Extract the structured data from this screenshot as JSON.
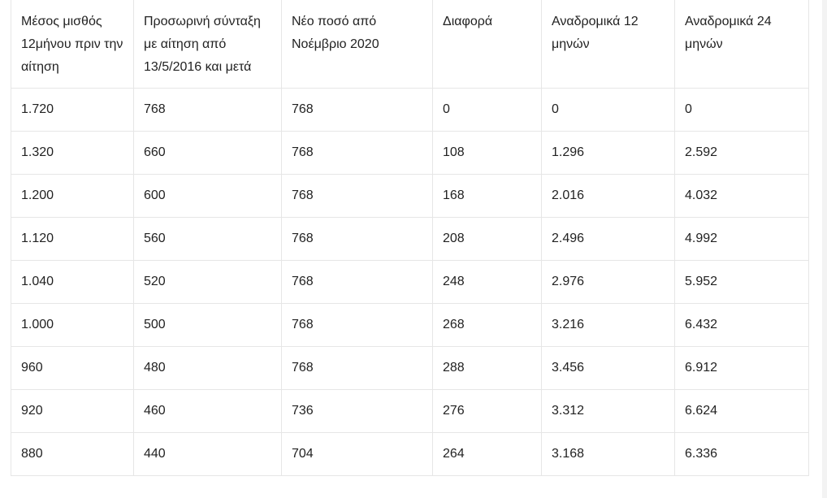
{
  "table": {
    "headers": [
      "Μέσος μισθός 12μήνου πριν την αίτηση",
      "Προσωρινή σύνταξη με αίτηση από 13/5/2016 και μετά",
      "Νέο ποσό από Νοέμβριο 2020",
      "Διαφορά",
      "Αναδρομικά 12 μηνών",
      "Αναδρομικά 24 μηνών"
    ],
    "rows": [
      [
        "1.720",
        "768",
        "768",
        "0",
        "0",
        "0"
      ],
      [
        "1.320",
        "660",
        "768",
        "108",
        "1.296",
        "2.592"
      ],
      [
        "1.200",
        "600",
        "768",
        "168",
        "2.016",
        "4.032"
      ],
      [
        "1.120",
        "560",
        "768",
        "208",
        "2.496",
        "4.992"
      ],
      [
        "1.040",
        "520",
        "768",
        "248",
        "2.976",
        "5.952"
      ],
      [
        "1.000",
        "500",
        "768",
        "268",
        "3.216",
        "6.432"
      ],
      [
        "960",
        "480",
        "768",
        "288",
        "3.456",
        "6.912"
      ],
      [
        "920",
        "460",
        "736",
        "276",
        "3.312",
        "6.624"
      ],
      [
        "880",
        "440",
        "704",
        "264",
        "3.168",
        "6.336"
      ]
    ]
  }
}
